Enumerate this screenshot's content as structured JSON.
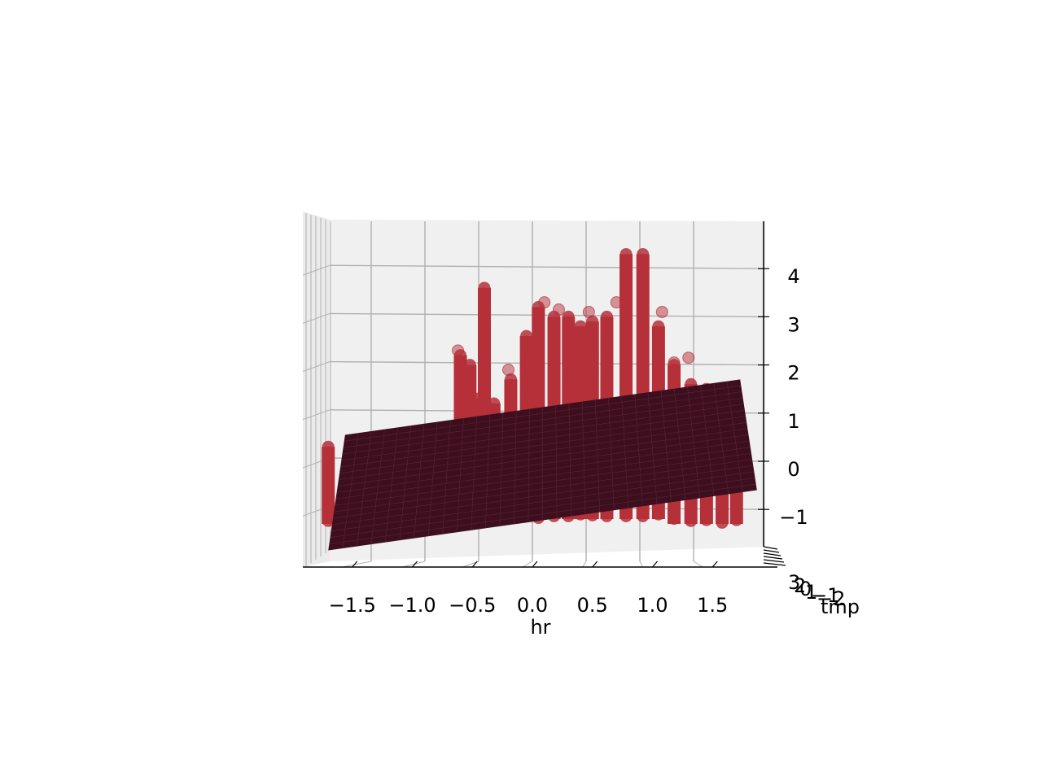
{
  "chart_data": {
    "type": "scatter",
    "projection": "3d",
    "view": "front, slight elevation",
    "xlabel": "hr",
    "zlabel_side": "tmp",
    "x_ticks": [
      "−1.5",
      "−1.0",
      "−0.5",
      "0.0",
      "0.5",
      "1.0",
      "1.5"
    ],
    "x_tick_values": [
      -1.5,
      -1.0,
      -0.5,
      0.0,
      0.5,
      1.0,
      1.5
    ],
    "y_ticks": [
      "−1",
      "0",
      "1",
      "2",
      "3",
      "4"
    ],
    "y_tick_values": [
      -1,
      0,
      1,
      2,
      3,
      4
    ],
    "depth_ticks": [
      "3",
      "2",
      "0",
      "1",
      "−1",
      "−2"
    ],
    "xlim": [
      -1.85,
      1.85
    ],
    "ylim": [
      -1.95,
      4.75
    ],
    "grid": true,
    "scatter_color": "#b5303a",
    "plane_color": "#3d0f1e",
    "pane_color": "#f0f0f0",
    "columns": [
      {
        "x": -1.7,
        "ymin": -1.3,
        "ymax": 0.3
      },
      {
        "x": -1.55,
        "ymin": -1.3,
        "ymax": -0.2
      },
      {
        "x": -1.45,
        "ymin": -1.2,
        "ymax": -0.4
      },
      {
        "x": -0.6,
        "ymin": -1.1,
        "ymax": 2.2
      },
      {
        "x": -0.52,
        "ymin": -1.1,
        "ymax": 2.0
      },
      {
        "x": -0.45,
        "ymin": -1.1,
        "ymax": 1.3
      },
      {
        "x": -0.4,
        "ymin": -1.1,
        "ymax": 3.6
      },
      {
        "x": -0.32,
        "ymin": -1.1,
        "ymax": 1.2
      },
      {
        "x": -0.18,
        "ymin": -1.1,
        "ymax": 1.7
      },
      {
        "x": -0.05,
        "ymin": -1.1,
        "ymax": 2.6
      },
      {
        "x": 0.05,
        "ymin": -1.2,
        "ymax": 3.2
      },
      {
        "x": 0.18,
        "ymin": -1.2,
        "ymax": 3.0
      },
      {
        "x": 0.3,
        "ymin": -1.2,
        "ymax": 3.0
      },
      {
        "x": 0.4,
        "ymin": -1.2,
        "ymax": 2.8
      },
      {
        "x": 0.5,
        "ymin": -1.2,
        "ymax": 2.9
      },
      {
        "x": 0.62,
        "ymin": -1.2,
        "ymax": 3.0
      },
      {
        "x": 0.78,
        "ymin": -1.2,
        "ymax": 4.3
      },
      {
        "x": 0.92,
        "ymin": -1.2,
        "ymax": 4.3
      },
      {
        "x": 1.05,
        "ymin": -1.2,
        "ymax": 2.8
      },
      {
        "x": 1.18,
        "ymin": -1.3,
        "ymax": 2.0
      },
      {
        "x": 1.32,
        "ymin": -1.3,
        "ymax": 1.6
      },
      {
        "x": 1.45,
        "ymin": -1.3,
        "ymax": 1.5
      },
      {
        "x": 1.58,
        "ymin": -1.3,
        "ymax": 0.5
      },
      {
        "x": 1.7,
        "ymin": -1.3,
        "ymax": 0.2
      }
    ],
    "outliers": [
      {
        "x": -0.62,
        "y": 2.3
      },
      {
        "x": -0.2,
        "y": 1.9
      },
      {
        "x": 0.1,
        "y": 3.3
      },
      {
        "x": 0.22,
        "y": 3.15
      },
      {
        "x": 0.47,
        "y": 3.1
      },
      {
        "x": 0.7,
        "y": 3.3
      },
      {
        "x": 1.08,
        "y": 3.1
      },
      {
        "x": 1.3,
        "y": 2.15
      },
      {
        "x": 1.18,
        "y": 2.05
      }
    ],
    "plane": {
      "corners": [
        {
          "x": -1.7,
          "y": -1.85
        },
        {
          "x": -1.56,
          "y": 0.55
        },
        {
          "x": 1.73,
          "y": 1.7
        },
        {
          "x": 1.87,
          "y": -0.6
        }
      ]
    }
  }
}
